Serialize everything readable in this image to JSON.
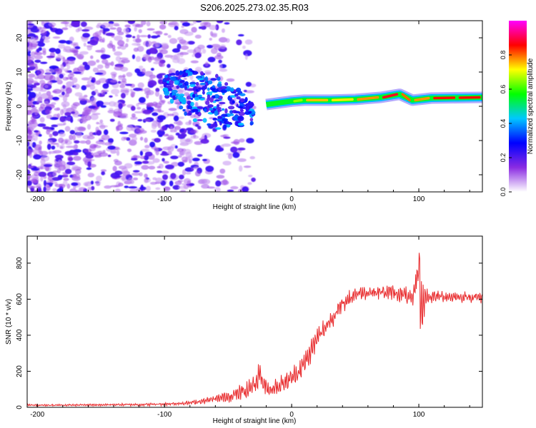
{
  "figure": {
    "title": "S206.2025.273.02.35.R03"
  },
  "colors": {
    "snr_line": "#e8292b",
    "axis": "#000000"
  },
  "chart_data": [
    {
      "type": "heatmap",
      "title": "S206.2025.273.02.35.R03",
      "xlabel": "Height of straight line (km)",
      "ylabel": "Frequency (Hz)",
      "xlim": [
        -208,
        150
      ],
      "ylim": [
        -25,
        25
      ],
      "xticks": [
        -200,
        -100,
        0,
        100
      ],
      "yticks": [
        -20,
        -10,
        0,
        10,
        20
      ],
      "xtick_labels": [
        "-200",
        "-100",
        "0",
        "100"
      ],
      "ytick_labels": [
        "-20",
        "-10",
        "0",
        "10",
        "20"
      ],
      "colorbar": {
        "label": "Normalized spectral amplitude",
        "range": [
          0,
          1
        ],
        "ticks": [
          0.0,
          0.2,
          0.4,
          0.6,
          0.8
        ],
        "tick_labels": [
          "0.0",
          "0.2",
          "0.4",
          "0.6",
          "0.8"
        ],
        "colormap": [
          "#ffffff",
          "#8a2be2",
          "#0000ff",
          "#00c8ff",
          "#00ff00",
          "#ffff00",
          "#ff0000",
          "#ff00ff"
        ]
      },
      "features": [
        {
          "name": "noise-field",
          "x_range": [
            -208,
            -60
          ],
          "y_range": [
            -25,
            25
          ],
          "amplitude": 0.15
        },
        {
          "name": "converging-band",
          "x_range": [
            -100,
            -30
          ],
          "y_start": 8,
          "y_end": 0,
          "amplitude": 0.35
        },
        {
          "name": "signal-ridge",
          "x": [
            -20,
            -10,
            0,
            10,
            30,
            50,
            70,
            85,
            95,
            110,
            130,
            150
          ],
          "y": [
            0.5,
            1.0,
            1.5,
            1.8,
            1.8,
            2.0,
            2.6,
            3.5,
            1.8,
            2.4,
            2.5,
            2.6
          ],
          "amplitude": [
            0.3,
            0.45,
            0.55,
            0.75,
            0.75,
            0.7,
            0.85,
            0.9,
            0.7,
            0.85,
            0.85,
            0.85
          ]
        }
      ]
    },
    {
      "type": "line",
      "xlabel": "Height of straight line (km)",
      "ylabel": "SNR (10 * v/v)",
      "xlim": [
        -208,
        150
      ],
      "ylim": [
        0,
        950
      ],
      "xticks": [
        -200,
        -100,
        0,
        100
      ],
      "yticks": [
        0,
        200,
        400,
        600,
        800
      ],
      "xtick_labels": [
        "-200",
        "-100",
        "0",
        "100"
      ],
      "ytick_labels": [
        "0",
        "200",
        "400",
        "600",
        "800"
      ],
      "series": [
        {
          "name": "SNR",
          "color": "#e8292b",
          "x": [
            -208,
            -180,
            -150,
            -120,
            -100,
            -80,
            -60,
            -45,
            -35,
            -28,
            -25,
            -22,
            -18,
            -10,
            0,
            10,
            20,
            30,
            40,
            50,
            60,
            70,
            80,
            90,
            95,
            100,
            102,
            105,
            110,
            120,
            130,
            140,
            150
          ],
          "y": [
            12,
            12,
            14,
            15,
            18,
            25,
            45,
            70,
            95,
            140,
            200,
            120,
            100,
            120,
            160,
            240,
            380,
            480,
            570,
            630,
            640,
            640,
            635,
            620,
            580,
            800,
            520,
            610,
            615,
            615,
            612,
            612,
            610
          ],
          "noise_amplitude": [
            5,
            5,
            6,
            7,
            8,
            10,
            20,
            35,
            50,
            60,
            60,
            50,
            40,
            45,
            55,
            60,
            60,
            55,
            45,
            40,
            38,
            38,
            40,
            45,
            80,
            150,
            200,
            60,
            35,
            30,
            30,
            30,
            30
          ]
        }
      ]
    }
  ]
}
